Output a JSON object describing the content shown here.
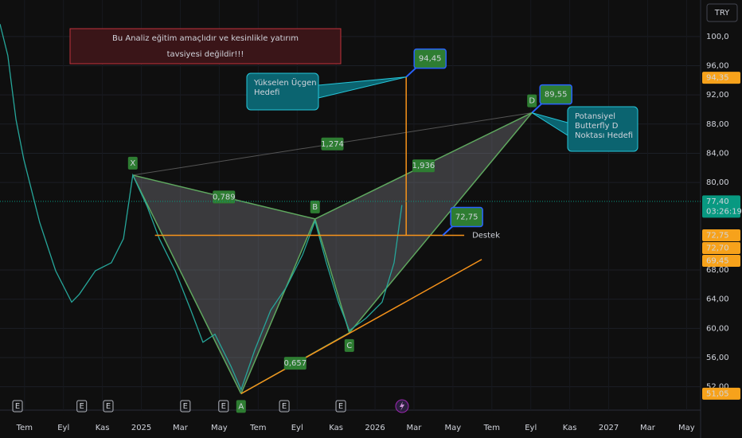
{
  "chart_data": {
    "type": "line",
    "currency": "TRY",
    "disclaimer": [
      "Bu Analiz eğitim amaçlıdır ve kesinlikle yatırım",
      "tavsiyesi değildir!!!"
    ],
    "categories": [
      "Tem",
      "Eyl",
      "Kas",
      "2025",
      "Mar",
      "May",
      "Tem",
      "Eyl",
      "Kas",
      "2026",
      "Mar",
      "May",
      "Tem",
      "Eyl",
      "Kas",
      "2027",
      "Mar",
      "May"
    ],
    "xlim": [
      -0.63,
      17.36
    ],
    "ylim": [
      48.8,
      105
    ],
    "yticks": [
      {
        "value": 100,
        "label": "100,0"
      },
      {
        "value": 96,
        "label": "96,00"
      },
      {
        "value": 92,
        "label": "92,00"
      },
      {
        "value": 88,
        "label": "88,00"
      },
      {
        "value": 84,
        "label": "84,00"
      },
      {
        "value": 80,
        "label": "80,00"
      },
      {
        "value": 68,
        "label": "68,00"
      },
      {
        "value": 64,
        "label": "64,00"
      },
      {
        "value": 60,
        "label": "60,00"
      },
      {
        "value": 56,
        "label": "56,00"
      },
      {
        "value": 52,
        "label": "52,00"
      }
    ],
    "price": {
      "color": "#26a69a",
      "x": [
        -0.63,
        -0.43,
        -0.22,
        -0.02,
        0.39,
        0.8,
        1.21,
        1.41,
        1.82,
        2.23,
        2.54,
        2.78,
        3.15,
        3.46,
        3.87,
        4.27,
        4.58,
        4.89,
        5.3,
        5.56,
        5.91,
        6.32,
        6.73,
        7.14,
        7.46,
        7.75,
        8.06,
        8.34,
        8.77,
        9.18,
        9.49,
        9.69
      ],
      "values": [
        101.7,
        97.4,
        88.6,
        83.2,
        74.5,
        67.9,
        63.6,
        64.7,
        67.9,
        69,
        72.3,
        81,
        76.7,
        72.3,
        67.9,
        62.5,
        58.1,
        59.2,
        54.8,
        51.6,
        57,
        62.5,
        65.7,
        70.1,
        74.7,
        69,
        63.6,
        59.7,
        61.4,
        63.6,
        69,
        76.9
      ]
    },
    "pattern": {
      "color": "#5fa85f",
      "points": [
        {
          "label": "X",
          "x": 2.78,
          "value": 81.0
        },
        {
          "label": "A",
          "x": 5.56,
          "value": 51.05
        },
        {
          "label": "B",
          "x": 7.46,
          "value": 75.0
        },
        {
          "label": "C",
          "x": 8.34,
          "value": 59.4
        },
        {
          "label": "D",
          "x": 13.03,
          "value": 89.55
        }
      ],
      "ratios": [
        "0,789",
        "1,274",
        "1,936",
        "0,657"
      ]
    },
    "support": {
      "label": "Destek",
      "value": 72.75,
      "x": [
        3.35,
        11.29
      ],
      "color": "#f7931a"
    },
    "trendline": {
      "x": [
        5.56,
        11.74
      ],
      "values": [
        51.05,
        69.45
      ],
      "color": "#f7931a"
    },
    "target_line": {
      "x": 9.8,
      "values": [
        72.75,
        94.45
      ],
      "color": "#f7931a"
    },
    "targets": [
      {
        "x": 9.8,
        "value": 94.45,
        "label": "94,45"
      },
      {
        "x": 13.03,
        "value": 89.55,
        "label": "89,55"
      },
      {
        "x": 10.74,
        "value": 72.75,
        "label": "72,75"
      }
    ],
    "callouts": [
      {
        "lines": [
          "Yükselen Üçgen",
          "Hedefi"
        ],
        "x": 9.8,
        "value": 94.45
      },
      {
        "lines": [
          "Potansiyel",
          "Butterfly D",
          "Noktası Hedefi"
        ],
        "x": 13.03,
        "value": 89.55
      }
    ],
    "price_labels": [
      {
        "value": 94.35,
        "label": "94,35",
        "color": "#f7a21b"
      },
      {
        "value": 77.4,
        "label": "77,40",
        "color": "#089981"
      },
      {
        "value": 72.75,
        "label": "72,75",
        "color": "#f7a21b"
      },
      {
        "value": 72.7,
        "label": "72,70",
        "color": "#f7a21b"
      },
      {
        "value": 69.45,
        "label": "69,45",
        "color": "#f7a21b"
      },
      {
        "value": 51.05,
        "label": "51,05",
        "color": "#f7a21b"
      }
    ],
    "countdown": "03:26:19",
    "events": [
      {
        "label": "E",
        "x": -0.18
      },
      {
        "label": "E",
        "x": 1.47
      },
      {
        "label": "E",
        "x": 2.15
      },
      {
        "label": "E",
        "x": 4.13
      },
      {
        "label": "E",
        "x": 5.11
      },
      {
        "label": "E",
        "x": 6.67
      },
      {
        "label": "E",
        "x": 8.12
      }
    ]
  }
}
